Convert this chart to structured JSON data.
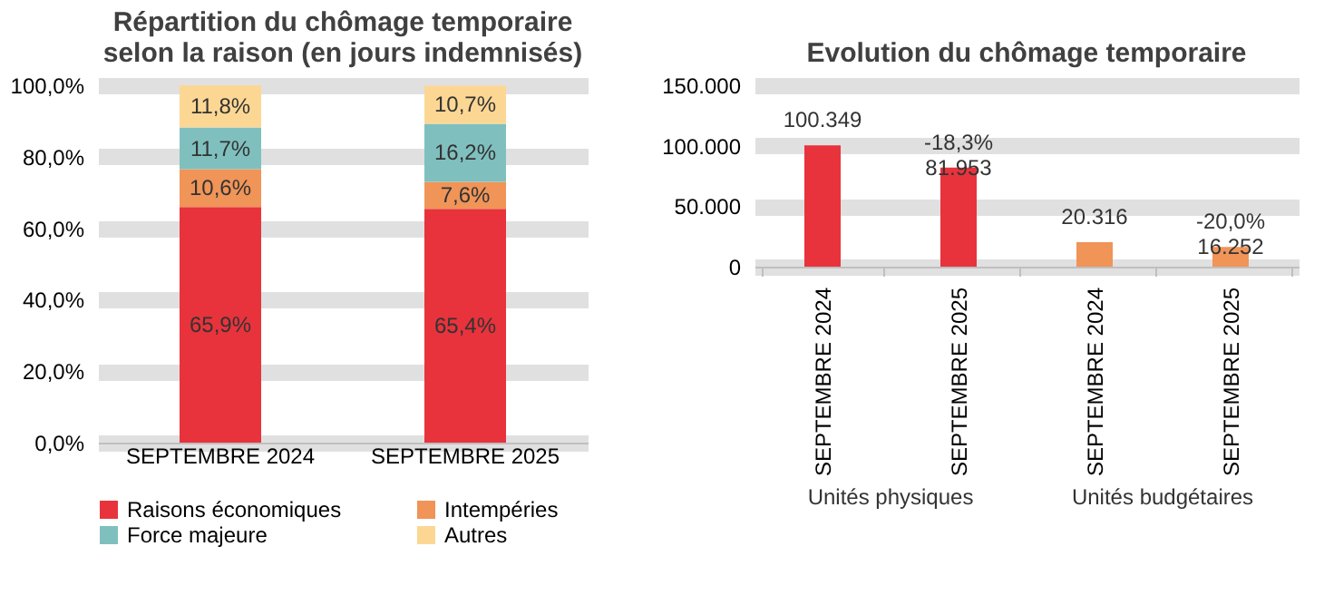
{
  "chart_data": [
    {
      "type": "bar",
      "title": "Répartition du chômage temporaire\nselon la raison (en jours indemnisés)",
      "stacked": true,
      "categories": [
        "SEPTEMBRE 2024",
        "SEPTEMBRE 2025"
      ],
      "series": [
        {
          "name": "Raisons économiques",
          "color": "#e8333c",
          "values": [
            65.9,
            65.4
          ],
          "value_labels": [
            "65,9%",
            "65,4%"
          ]
        },
        {
          "name": "Intempéries",
          "color": "#f09458",
          "values": [
            10.6,
            7.6
          ],
          "value_labels": [
            "10,6%",
            "7,6%"
          ]
        },
        {
          "name": "Force majeure",
          "color": "#7fc0bf",
          "values": [
            11.7,
            16.2
          ],
          "value_labels": [
            "11,7%",
            "16,2%"
          ]
        },
        {
          "name": "Autres",
          "color": "#fcd794",
          "values": [
            11.8,
            10.7
          ],
          "value_labels": [
            "11,8%",
            "10,7%"
          ]
        }
      ],
      "ylim": [
        0,
        100
      ],
      "yticks": [
        {
          "value": 0,
          "label": "0,0%"
        },
        {
          "value": 20,
          "label": "20,0%"
        },
        {
          "value": 40,
          "label": "40,0%"
        },
        {
          "value": 60,
          "label": "60,0%"
        },
        {
          "value": 80,
          "label": "80,0%"
        },
        {
          "value": 100,
          "label": "100,0%"
        }
      ],
      "grid": "y",
      "legend": "bottom"
    },
    {
      "type": "bar",
      "title": "Evolution du chômage temporaire",
      "categories": [
        "SEPTEMBRE 2024",
        "SEPTEMBRE 2025",
        "SEPTEMBRE 2024",
        "SEPTEMBRE 2025"
      ],
      "values": [
        100349,
        81953,
        20316,
        16252
      ],
      "colors": [
        "#e8333c",
        "#e8333c",
        "#f09458",
        "#f09458"
      ],
      "value_labels": [
        "100.349",
        "-18,3%\n81.953",
        "20.316",
        "-20,0%\n16.252"
      ],
      "annotations": [
        "Unités physiques",
        "Unités budgétaires"
      ],
      "ylim": [
        0,
        150000
      ],
      "yticks": [
        0,
        {
          "value": 50000,
          "label": "50.000"
        },
        {
          "value": 100000,
          "label": "100.000"
        },
        {
          "value": 150000,
          "label": "150.000"
        }
      ],
      "grid": "y",
      "legend": false
    }
  ]
}
